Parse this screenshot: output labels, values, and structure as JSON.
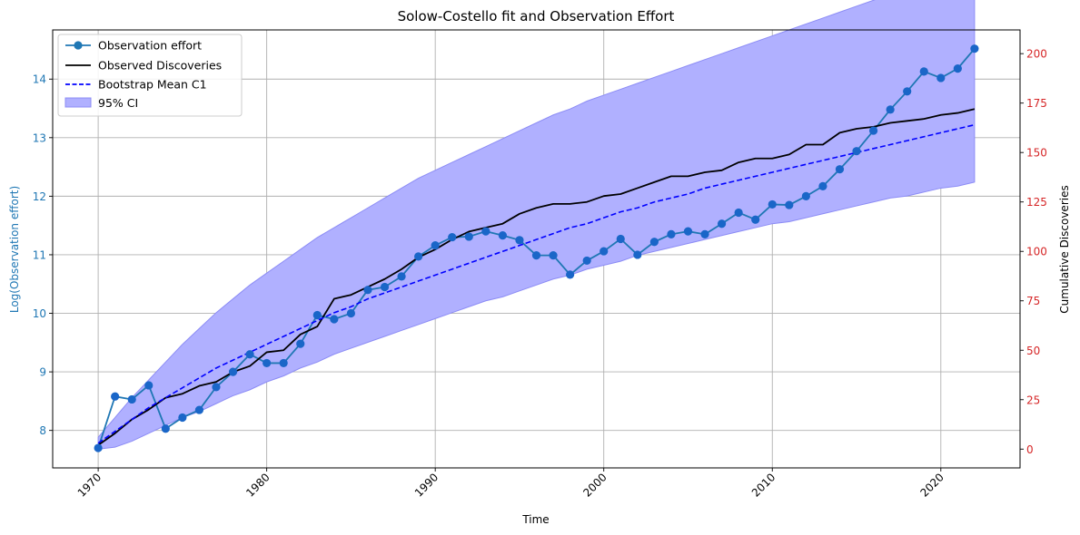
{
  "chart_data": {
    "type": "line",
    "title": "Solow-Costello fit and Observation Effort",
    "xlabel": "Time",
    "ylabel_left": "Log(Observation effort)",
    "ylabel_right": "Cumulative Discoveries",
    "xlim": [
      1967.3,
      2024.7
    ],
    "ylim_left": [
      7.36,
      14.84
    ],
    "ylim_right": [
      -9.5,
      212
    ],
    "x_ticks": [
      1970,
      1980,
      1990,
      2000,
      2010,
      2020
    ],
    "y_ticks_left": [
      8,
      9,
      10,
      11,
      12,
      13,
      14
    ],
    "y_ticks_right": [
      0,
      25,
      50,
      75,
      100,
      125,
      150,
      175,
      200
    ],
    "grid": true,
    "legend_position": "top-left",
    "colors": {
      "effort": "#1f77b4",
      "effort_marker": "#1a66c8",
      "observed": "#000000",
      "bootstrap": "#0000ff",
      "ci_fill": "#b0b0ff",
      "ci_edge": "#8c8cf5",
      "left_axis": "#1f77b4",
      "right_axis": "#d62728",
      "grid": "#b0b0b0"
    },
    "legend": [
      {
        "key": "effort",
        "label": "Observation effort"
      },
      {
        "key": "observed",
        "label": "Observed Discoveries"
      },
      {
        "key": "bootstrap",
        "label": "Bootstrap Mean C1"
      },
      {
        "key": "ci",
        "label": "95% CI"
      }
    ],
    "years": [
      1970,
      1971,
      1972,
      1973,
      1974,
      1975,
      1976,
      1977,
      1978,
      1979,
      1980,
      1981,
      1982,
      1983,
      1984,
      1985,
      1986,
      1987,
      1988,
      1989,
      1990,
      1991,
      1992,
      1993,
      1994,
      1995,
      1996,
      1997,
      1998,
      1999,
      2000,
      2001,
      2002,
      2003,
      2004,
      2005,
      2006,
      2007,
      2008,
      2009,
      2010,
      2011,
      2012,
      2013,
      2014,
      2015,
      2016,
      2017,
      2018,
      2019,
      2020,
      2021,
      2022
    ],
    "series": [
      {
        "name": "Observation effort",
        "axis": "left",
        "values": [
          7.7,
          8.58,
          8.53,
          8.77,
          8.03,
          8.22,
          8.35,
          8.74,
          9.0,
          9.3,
          9.15,
          9.15,
          9.48,
          9.97,
          9.9,
          10.0,
          10.4,
          10.45,
          10.63,
          10.97,
          11.16,
          11.3,
          11.31,
          11.4,
          11.33,
          11.25,
          10.99,
          10.99,
          10.66,
          10.9,
          11.06,
          11.27,
          11.0,
          11.22,
          11.35,
          11.4,
          11.35,
          11.53,
          11.72,
          11.6,
          11.86,
          11.85,
          12.0,
          12.17,
          12.46,
          12.77,
          13.12,
          13.48,
          13.79,
          14.13,
          14.02,
          14.18,
          14.52
        ]
      },
      {
        "name": "Observed Discoveries",
        "axis": "right",
        "values": [
          2,
          8,
          15,
          20,
          26,
          28,
          32,
          34,
          39,
          42,
          49,
          50,
          58,
          62,
          76,
          78,
          82,
          86,
          91,
          97,
          101,
          106,
          110,
          112,
          114,
          119,
          122,
          124,
          124,
          125,
          128,
          129,
          132,
          135,
          138,
          138,
          140,
          141,
          145,
          147,
          147,
          149,
          154,
          154,
          160,
          162,
          163,
          165,
          166,
          167,
          169,
          170,
          172
        ]
      },
      {
        "name": "Bootstrap Mean C1",
        "axis": "right",
        "values": [
          3,
          9,
          15,
          21,
          26,
          31,
          36,
          41,
          45,
          49,
          53,
          57,
          61,
          65,
          69,
          72,
          76,
          79,
          82,
          85,
          88,
          91,
          94,
          97,
          100,
          103,
          106,
          109,
          112,
          114,
          117,
          120,
          122,
          125,
          127,
          129,
          132,
          134,
          136,
          138,
          140,
          142,
          144,
          146,
          148,
          150,
          152,
          154,
          156,
          158,
          160,
          162,
          164
        ]
      },
      {
        "name": "95% CI",
        "axis": "right",
        "lower": [
          0,
          1,
          4,
          8,
          12,
          16,
          19,
          23,
          27,
          30,
          34,
          37,
          41,
          44,
          48,
          51,
          54,
          57,
          60,
          63,
          66,
          69,
          72,
          75,
          77,
          80,
          83,
          86,
          88,
          91,
          93,
          95,
          98,
          100,
          102,
          104,
          106,
          108,
          110,
          112,
          114,
          115,
          117,
          119,
          121,
          123,
          125,
          127,
          128,
          130,
          132,
          133,
          135
        ],
        "upper": [
          6,
          16,
          26,
          35,
          44,
          53,
          61,
          69,
          76,
          83,
          89,
          95,
          101,
          107,
          112,
          117,
          122,
          127,
          132,
          137,
          141,
          145,
          149,
          153,
          157,
          161,
          165,
          169,
          172,
          176,
          179,
          182,
          185,
          188,
          191,
          194,
          197,
          200,
          203,
          206,
          209,
          212,
          215,
          218,
          221,
          224,
          227,
          230,
          233,
          236,
          239,
          242,
          245
        ]
      }
    ]
  }
}
